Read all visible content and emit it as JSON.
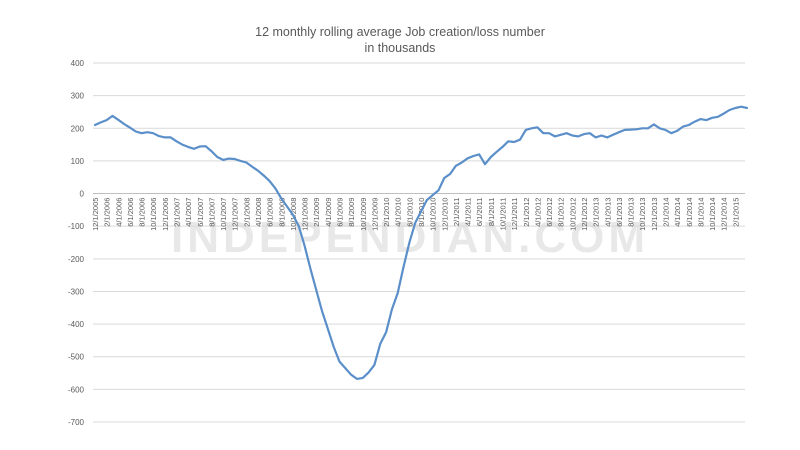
{
  "chart_data": {
    "type": "line",
    "title_lines": [
      "12 monthly rolling average Job creation/loss number",
      "in thousands"
    ],
    "watermark": "INDEPENDIAN.COM",
    "xlabel": "",
    "ylabel": "",
    "ylim": [
      -700,
      400
    ],
    "yticks": [
      400,
      300,
      200,
      100,
      0,
      -100,
      -200,
      -300,
      -400,
      -500,
      -600,
      -700
    ],
    "grid": true,
    "legend": "none",
    "colors": {
      "line": "#5b8fc9",
      "grid": "#d9d9d9",
      "text": "#595959"
    },
    "x_start": "12/1/2005",
    "x_end": "3/1/2015",
    "x_tick_labels": [
      "12/1/2005",
      "2/1/2006",
      "4/1/2006",
      "6/1/2006",
      "8/1/2006",
      "10/1/2006",
      "12/1/2006",
      "2/1/2007",
      "4/1/2007",
      "6/1/2007",
      "8/1/2007",
      "10/1/2007",
      "12/1/2007",
      "2/1/2008",
      "4/1/2008",
      "6/1/2008",
      "8/1/2008",
      "10/1/2008",
      "12/1/2008",
      "2/1/2009",
      "4/1/2009",
      "6/1/2009",
      "8/1/2009",
      "10/1/2009",
      "12/1/2009",
      "2/1/2010",
      "4/1/2010",
      "6/1/2010",
      "8/1/2010",
      "10/1/2010",
      "12/1/2010",
      "2/1/2011",
      "4/1/2011",
      "6/1/2011",
      "8/1/2011",
      "10/1/2011",
      "12/1/2011",
      "2/1/2012",
      "4/1/2012",
      "6/1/2012",
      "8/1/2012",
      "10/1/2012",
      "12/1/2012",
      "2/1/2013",
      "4/1/2013",
      "6/1/2013",
      "8/1/2013",
      "10/1/2013",
      "12/1/2013",
      "2/1/2014",
      "4/1/2014",
      "6/1/2014",
      "8/1/2014",
      "10/1/2014",
      "12/1/2014",
      "2/1/2015"
    ],
    "series": [
      {
        "name": "12 monthly rolling average Job creation/loss number",
        "values": [
          210,
          218,
          225,
          238,
          226,
          213,
          202,
          190,
          185,
          188,
          185,
          176,
          172,
          172,
          160,
          150,
          143,
          137,
          144,
          145,
          130,
          112,
          103,
          107,
          106,
          100,
          95,
          82,
          70,
          55,
          38,
          15,
          -15,
          -40,
          -65,
          -100,
          -160,
          -230,
          -295,
          -360,
          -415,
          -470,
          -515,
          -535,
          -555,
          -568,
          -565,
          -548,
          -525,
          -460,
          -425,
          -355,
          -305,
          -225,
          -150,
          -90,
          -55,
          -20,
          -5,
          10,
          48,
          60,
          85,
          95,
          108,
          115,
          120,
          90,
          112,
          128,
          143,
          160,
          158,
          165,
          195,
          200,
          203,
          185,
          185,
          175,
          180,
          185,
          178,
          175,
          182,
          185,
          172,
          178,
          172,
          180,
          188,
          195,
          196,
          197,
          200,
          200,
          212,
          200,
          195,
          185,
          192,
          205,
          210,
          220,
          228,
          225,
          232,
          235,
          245,
          256,
          262,
          266,
          262
        ]
      }
    ]
  }
}
